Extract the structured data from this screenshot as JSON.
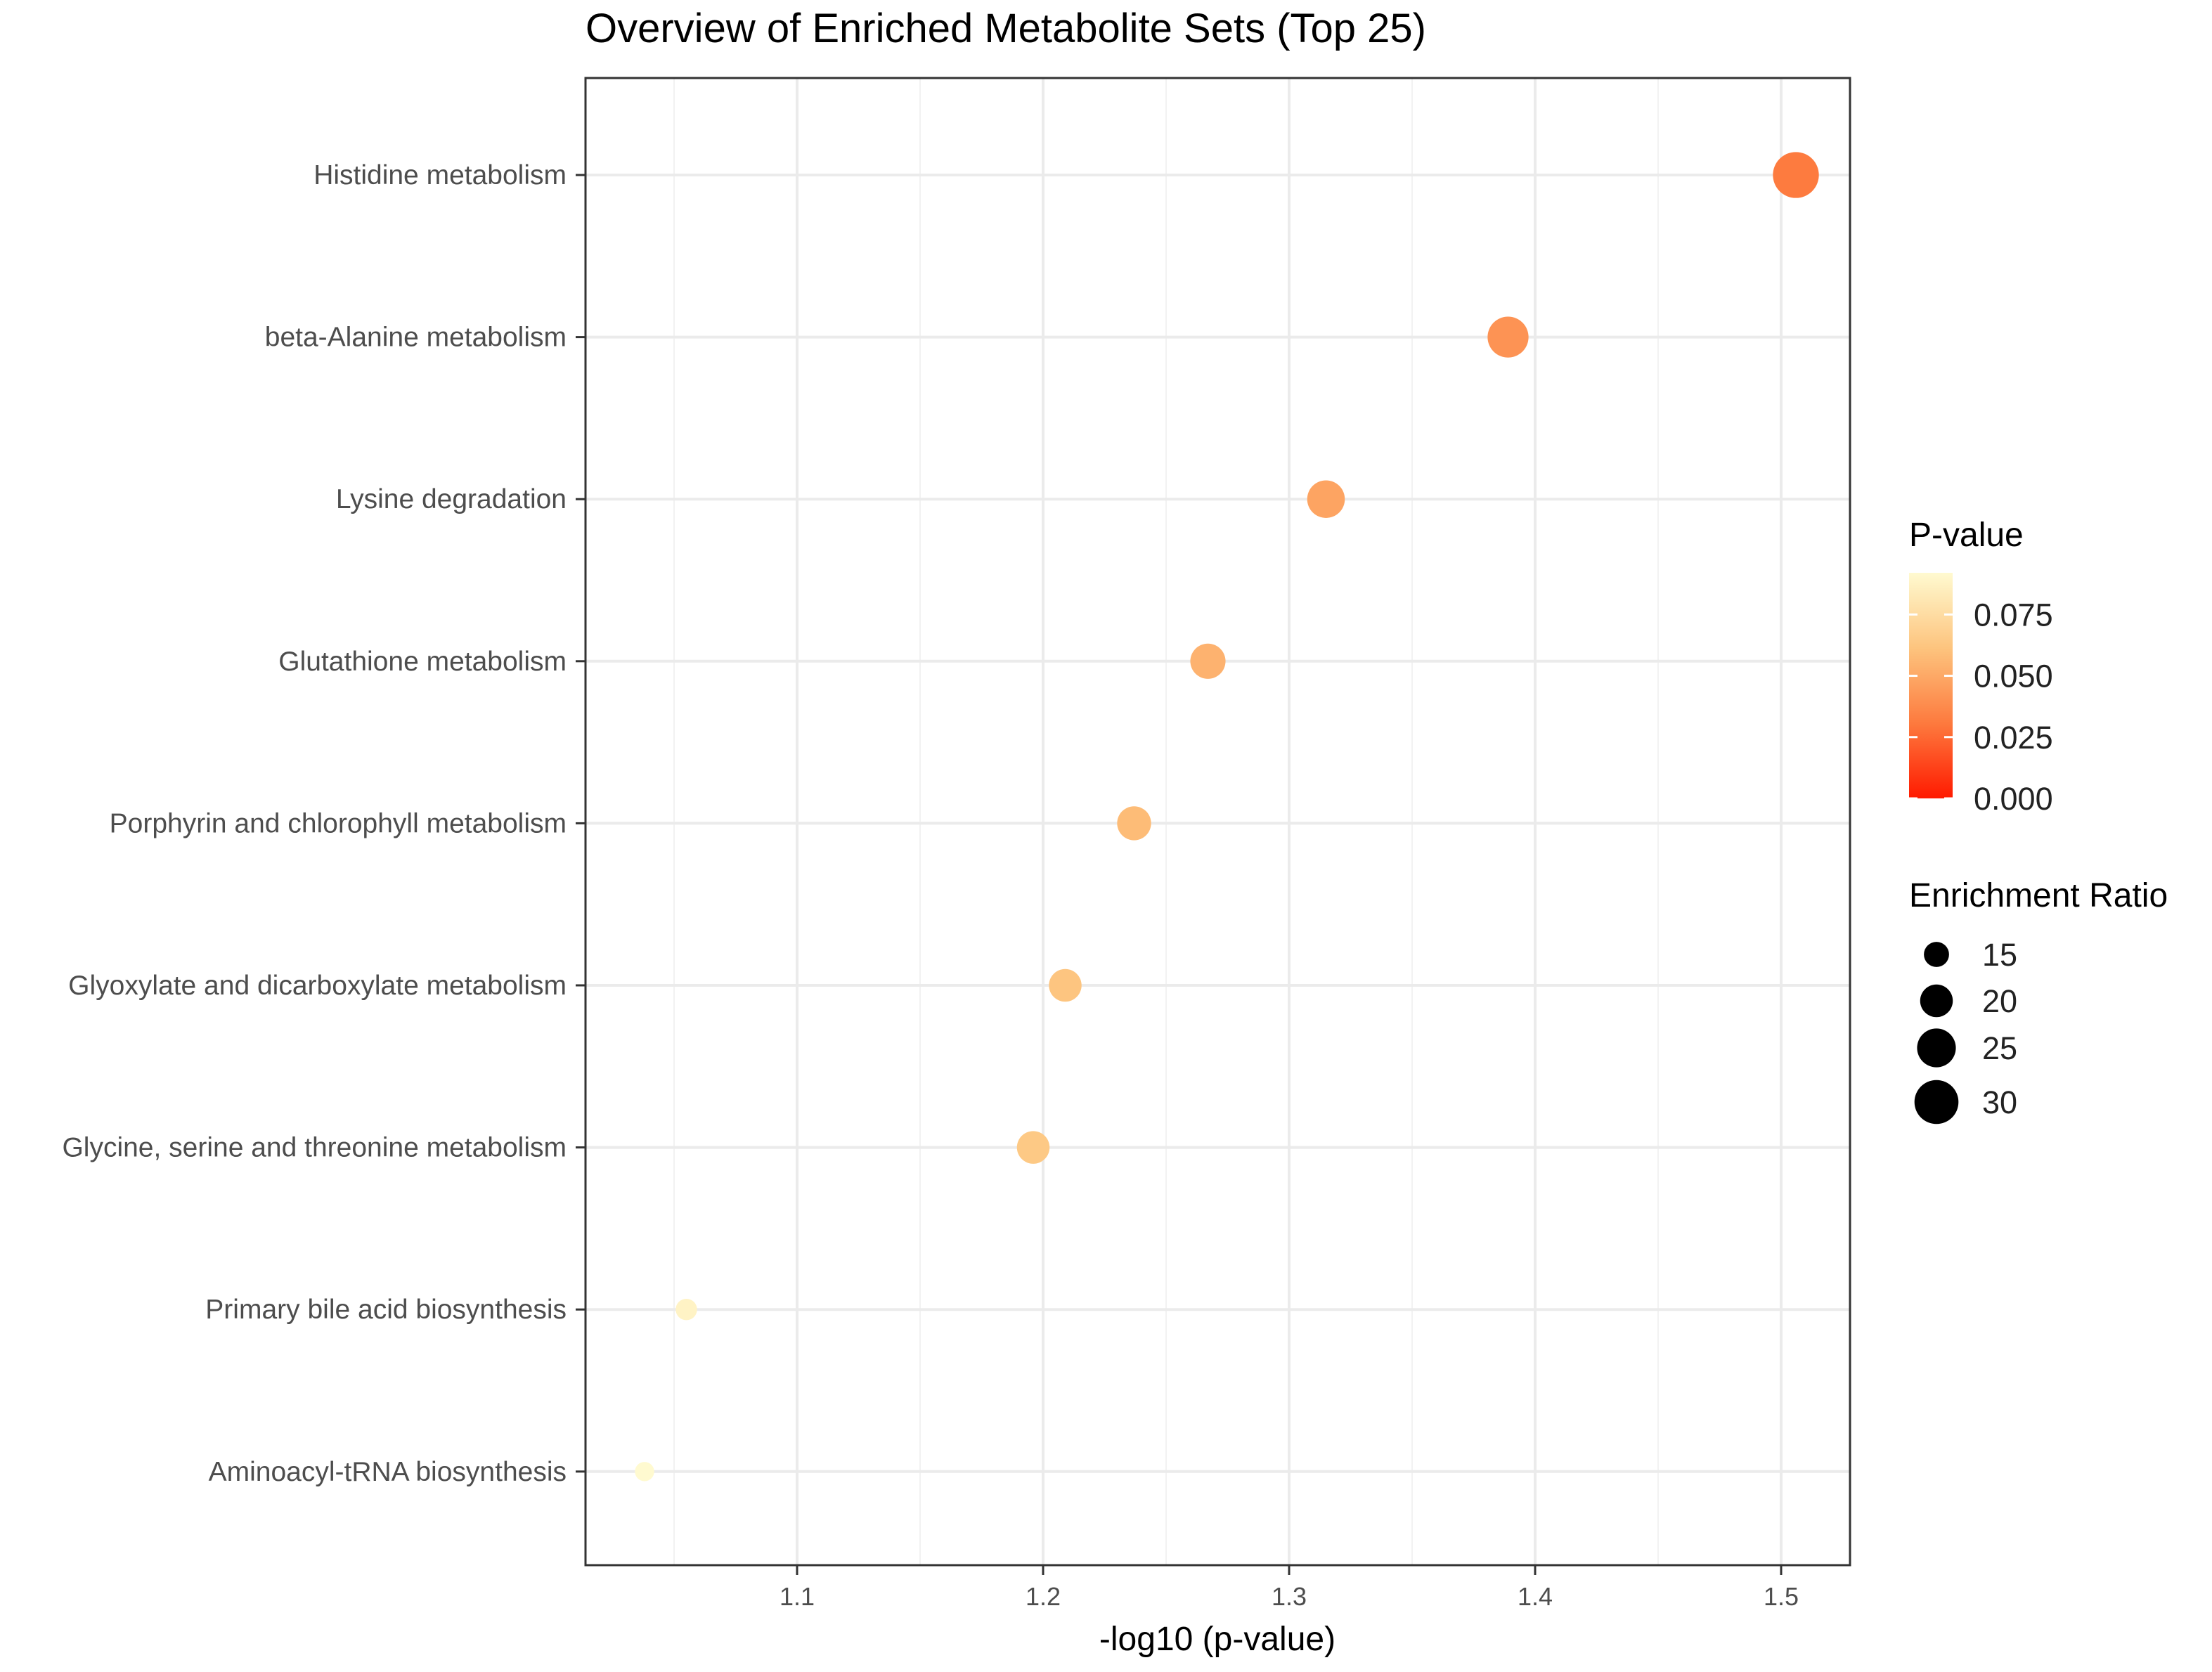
{
  "chart_data": {
    "type": "scatter",
    "title": "Overview of Enriched Metabolite Sets (Top 25)",
    "xlabel": "-log10 (p-value)",
    "ylabel": "",
    "xlim": [
      1.014,
      1.528
    ],
    "x_ticks": [
      1.1,
      1.2,
      1.3,
      1.4,
      1.5
    ],
    "x_tick_labels": [
      "1.1",
      "1.2",
      "1.3",
      "1.4",
      "1.5"
    ],
    "grid": true,
    "categories": [
      "Histidine metabolism",
      "beta-Alanine metabolism",
      "Lysine degradation",
      "Glutathione metabolism",
      "Porphyrin and chlorophyll metabolism",
      "Glyoxylate and dicarboxylate metabolism",
      "Glycine, serine and threonine metabolism",
      "Primary bile acid biosynthesis",
      "Aminoacyl-tRNA biosynthesis"
    ],
    "points": [
      {
        "name": "Histidine metabolism",
        "x": 1.506,
        "p_value": 0.031,
        "enrichment_ratio": 32
      },
      {
        "name": "beta-Alanine metabolism",
        "x": 1.389,
        "p_value": 0.041,
        "enrichment_ratio": 27
      },
      {
        "name": "Lysine degradation",
        "x": 1.315,
        "p_value": 0.048,
        "enrichment_ratio": 24
      },
      {
        "name": "Glutathione metabolism",
        "x": 1.267,
        "p_value": 0.054,
        "enrichment_ratio": 22
      },
      {
        "name": "Porphyrin and chlorophyll metabolism",
        "x": 1.237,
        "p_value": 0.058,
        "enrichment_ratio": 21
      },
      {
        "name": "Glyoxylate and dicarboxylate metabolism",
        "x": 1.209,
        "p_value": 0.062,
        "enrichment_ratio": 20
      },
      {
        "name": "Glycine, serine and threonine metabolism",
        "x": 1.196,
        "p_value": 0.064,
        "enrichment_ratio": 20
      },
      {
        "name": "Primary bile acid biosynthesis",
        "x": 1.055,
        "p_value": 0.088,
        "enrichment_ratio": 13
      },
      {
        "name": "Aminoacyl-tRNA biosynthesis",
        "x": 1.038,
        "p_value": 0.092,
        "enrichment_ratio": 12
      }
    ],
    "legend_color": {
      "title": "P-value",
      "range": [
        0,
        0.092
      ],
      "colors": [
        "#ff1a00",
        "#fd7a3e",
        "#fdc47e",
        "#fffad0"
      ],
      "ticks": [
        0.0,
        0.025,
        0.05,
        0.075
      ],
      "tick_labels": [
        "0.000",
        "0.025",
        "0.050",
        "0.075"
      ],
      "placement": "right"
    },
    "legend_size": {
      "title": "Enrichment Ratio",
      "values": [
        15,
        20,
        25,
        30
      ],
      "labels": [
        "15",
        "20",
        "25",
        "30"
      ],
      "placement": "right"
    }
  }
}
